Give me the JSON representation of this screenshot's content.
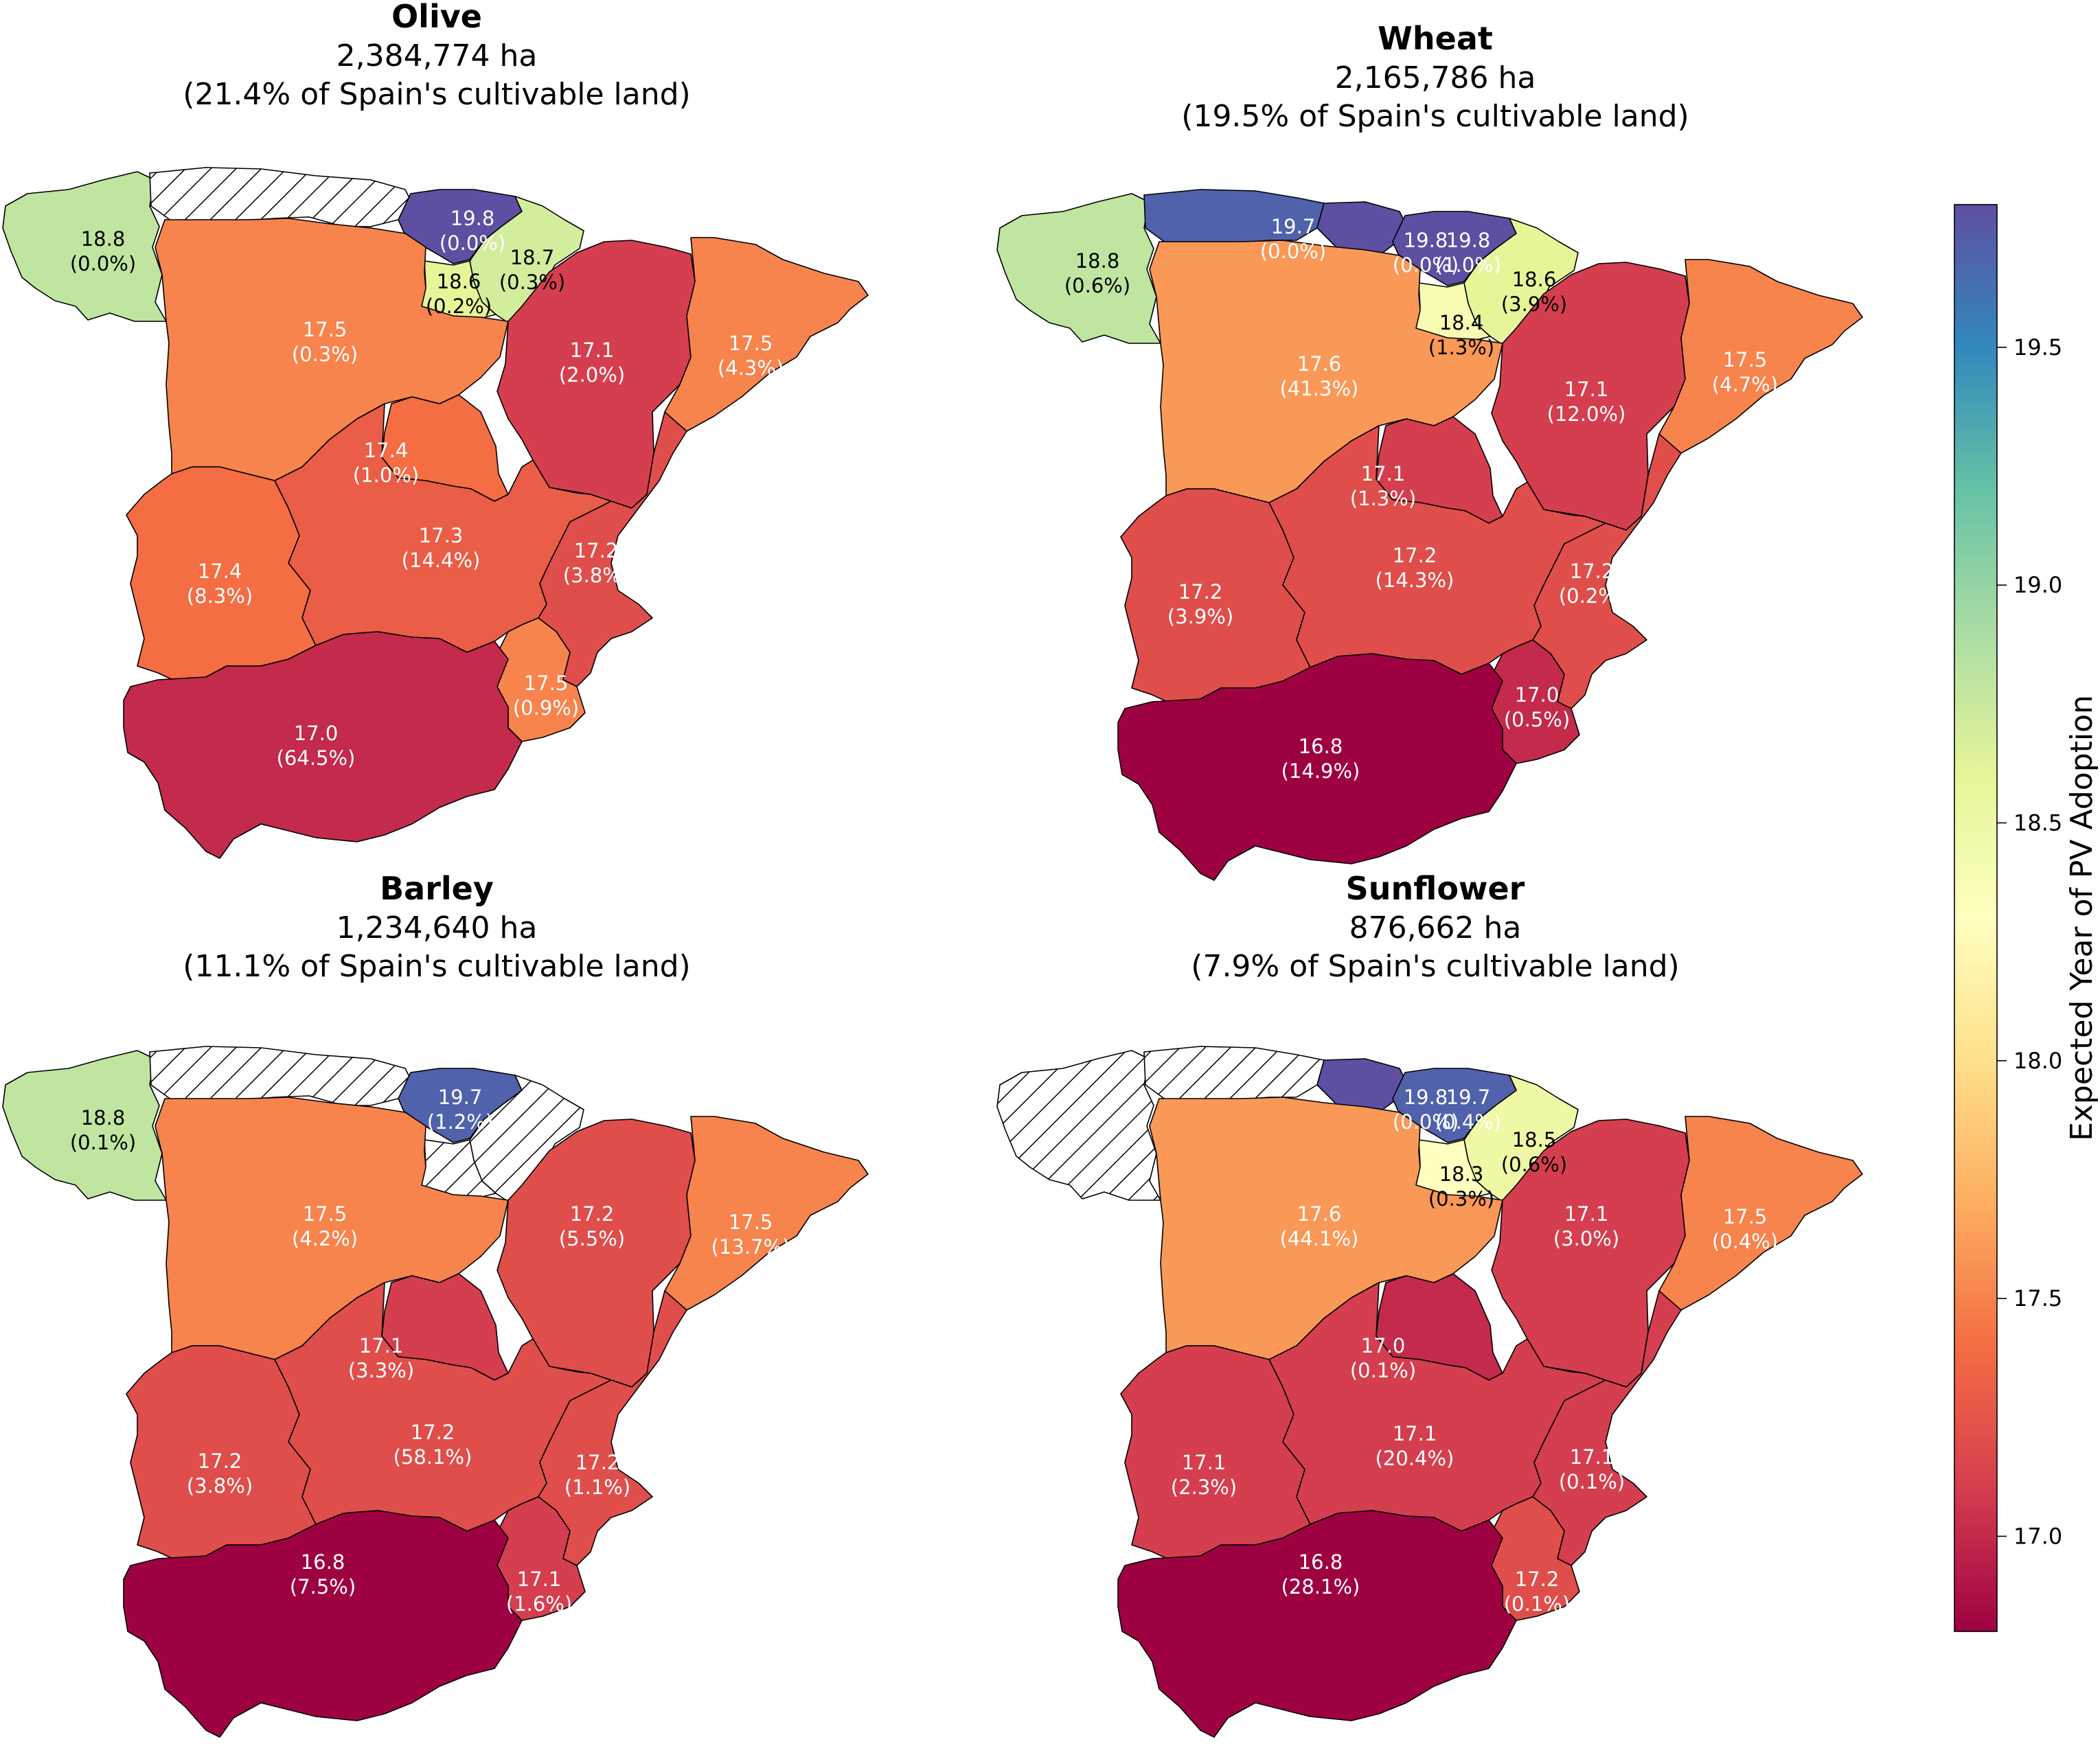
{
  "chart_data": [
    {
      "type": "choropleth",
      "title": "Olive",
      "area_text": "2,384,774 ha",
      "share_text": "(21.4% of Spain's cultivable land)",
      "regions": [
        {
          "name": "Galicia",
          "year": "18.8",
          "pct": "(0.0%)",
          "value": 18.8
        },
        {
          "name": "Asturias-Cantabria",
          "hatched": true
        },
        {
          "name": "Basque Country",
          "year": "19.8",
          "pct": "(0.0%)",
          "value": 19.8
        },
        {
          "name": "Navarre",
          "year": "18.7",
          "pct": "(0.3%)",
          "value": 18.7
        },
        {
          "name": "La Rioja",
          "year": "18.6",
          "pct": "(0.2%)",
          "value": 18.6
        },
        {
          "name": "Castile and León",
          "year": "17.5",
          "pct": "(0.3%)",
          "value": 17.5
        },
        {
          "name": "Aragon",
          "year": "17.1",
          "pct": "(2.0%)",
          "value": 17.1
        },
        {
          "name": "Catalonia",
          "year": "17.5",
          "pct": "(4.3%)",
          "value": 17.5
        },
        {
          "name": "Madrid",
          "year": "17.4",
          "pct": "(1.0%)",
          "value": 17.4
        },
        {
          "name": "Extremadura",
          "year": "17.4",
          "pct": "(8.3%)",
          "value": 17.4
        },
        {
          "name": "Castile-La Mancha",
          "year": "17.3",
          "pct": "(14.4%)",
          "value": 17.3
        },
        {
          "name": "Valencia",
          "year": "17.2",
          "pct": "(3.8%)",
          "value": 17.2
        },
        {
          "name": "Murcia",
          "year": "17.5",
          "pct": "(0.9%)",
          "value": 17.5
        },
        {
          "name": "Andalusia",
          "year": "17.0",
          "pct": "(64.5%)",
          "value": 17.0
        }
      ]
    },
    {
      "type": "choropleth",
      "title": "Wheat",
      "area_text": "2,165,786 ha",
      "share_text": "(19.5% of Spain's cultivable land)",
      "regions": [
        {
          "name": "Galicia",
          "year": "18.8",
          "pct": "(0.6%)",
          "value": 18.8
        },
        {
          "name": "Asturias",
          "year": "19.7",
          "pct": "(0.0%)",
          "value": 19.7
        },
        {
          "name": "Cantabria",
          "year": "19.8",
          "pct": "(0.0%)",
          "value": 19.8
        },
        {
          "name": "Basque Country",
          "year": "19.8",
          "pct": "(1.0%)",
          "value": 19.8
        },
        {
          "name": "Navarre",
          "year": "18.6",
          "pct": "(3.9%)",
          "value": 18.6
        },
        {
          "name": "La Rioja",
          "year": "18.4",
          "pct": "(1.3%)",
          "value": 18.4
        },
        {
          "name": "Castile and León",
          "year": "17.6",
          "pct": "(41.3%)",
          "value": 17.6
        },
        {
          "name": "Aragon",
          "year": "17.1",
          "pct": "(12.0%)",
          "value": 17.1
        },
        {
          "name": "Catalonia",
          "year": "17.5",
          "pct": "(4.7%)",
          "value": 17.5
        },
        {
          "name": "Madrid",
          "year": "17.1",
          "pct": "(1.3%)",
          "value": 17.1
        },
        {
          "name": "Extremadura",
          "year": "17.2",
          "pct": "(3.9%)",
          "value": 17.2
        },
        {
          "name": "Castile-La Mancha",
          "year": "17.2",
          "pct": "(14.3%)",
          "value": 17.2
        },
        {
          "name": "Valencia",
          "year": "17.2",
          "pct": "(0.2%)",
          "value": 17.2
        },
        {
          "name": "Murcia",
          "year": "17.0",
          "pct": "(0.5%)",
          "value": 17.0
        },
        {
          "name": "Andalusia",
          "year": "16.8",
          "pct": "(14.9%)",
          "value": 16.8
        }
      ]
    },
    {
      "type": "choropleth",
      "title": "Barley",
      "area_text": "1,234,640 ha",
      "share_text": "(11.1% of Spain's cultivable land)",
      "regions": [
        {
          "name": "Galicia",
          "year": "18.8",
          "pct": "(0.1%)",
          "value": 18.8
        },
        {
          "name": "Asturias-Cantabria",
          "hatched": true
        },
        {
          "name": "Basque Country",
          "year": "19.7",
          "pct": "(1.2%)",
          "value": 19.7
        },
        {
          "name": "Navarre",
          "hatched": true
        },
        {
          "name": "La Rioja",
          "hatched": true
        },
        {
          "name": "Castile and León",
          "year": "17.5",
          "pct": "(4.2%)",
          "value": 17.5
        },
        {
          "name": "Aragon",
          "year": "17.2",
          "pct": "(5.5%)",
          "value": 17.2
        },
        {
          "name": "Catalonia",
          "year": "17.5",
          "pct": "(13.7%)",
          "value": 17.5
        },
        {
          "name": "Madrid",
          "year": "17.1",
          "pct": "(3.3%)",
          "value": 17.1
        },
        {
          "name": "Extremadura",
          "year": "17.2",
          "pct": "(3.8%)",
          "value": 17.2
        },
        {
          "name": "Castile-La Mancha",
          "year": "17.2",
          "pct": "(58.1%)",
          "value": 17.2
        },
        {
          "name": "Valencia",
          "year": "17.2",
          "pct": "(1.1%)",
          "value": 17.2
        },
        {
          "name": "Murcia",
          "year": "17.1",
          "pct": "(1.6%)",
          "value": 17.1
        },
        {
          "name": "Andalusia",
          "year": "16.8",
          "pct": "(7.5%)",
          "value": 16.8
        }
      ]
    },
    {
      "type": "choropleth",
      "title": "Sunflower",
      "area_text": "876,662 ha",
      "share_text": "(7.9% of Spain's cultivable land)",
      "regions": [
        {
          "name": "Galicia",
          "hatched": true
        },
        {
          "name": "Asturias",
          "hatched": true
        },
        {
          "name": "Cantabria",
          "year": "19.8",
          "pct": "(0.0%)",
          "value": 19.8
        },
        {
          "name": "Basque Country",
          "year": "19.7",
          "pct": "(0.4%)",
          "value": 19.7
        },
        {
          "name": "Navarre",
          "year": "18.5",
          "pct": "(0.6%)",
          "value": 18.5
        },
        {
          "name": "La Rioja",
          "year": "18.3",
          "pct": "(0.3%)",
          "value": 18.3
        },
        {
          "name": "Castile and León",
          "year": "17.6",
          "pct": "(44.1%)",
          "value": 17.6
        },
        {
          "name": "Aragon",
          "year": "17.1",
          "pct": "(3.0%)",
          "value": 17.1
        },
        {
          "name": "Catalonia",
          "year": "17.5",
          "pct": "(0.4%)",
          "value": 17.5
        },
        {
          "name": "Madrid",
          "year": "17.0",
          "pct": "(0.1%)",
          "value": 17.0
        },
        {
          "name": "Extremadura",
          "year": "17.1",
          "pct": "(2.3%)",
          "value": 17.1
        },
        {
          "name": "Castile-La Mancha",
          "year": "17.1",
          "pct": "(20.4%)",
          "value": 17.1
        },
        {
          "name": "Valencia",
          "year": "17.1",
          "pct": "(0.1%)",
          "value": 17.1
        },
        {
          "name": "Murcia",
          "year": "17.2",
          "pct": "(0.1%)",
          "value": 17.2
        },
        {
          "name": "Andalusia",
          "year": "16.8",
          "pct": "(28.1%)",
          "value": 16.8
        }
      ]
    }
  ],
  "colorbar": {
    "label": "Expected Year of PV Adoption",
    "range": [
      16.8,
      19.8
    ],
    "ticks": [
      "17.0",
      "17.5",
      "18.0",
      "18.5",
      "19.0",
      "19.5"
    ],
    "colormap": "Spectral",
    "stops": [
      "#9e0142",
      "#d53e4f",
      "#f46d43",
      "#fdae61",
      "#fee08b",
      "#ffffbf",
      "#e6f598",
      "#abdda4",
      "#66c2a5",
      "#3288bd",
      "#5e4fa2"
    ]
  }
}
